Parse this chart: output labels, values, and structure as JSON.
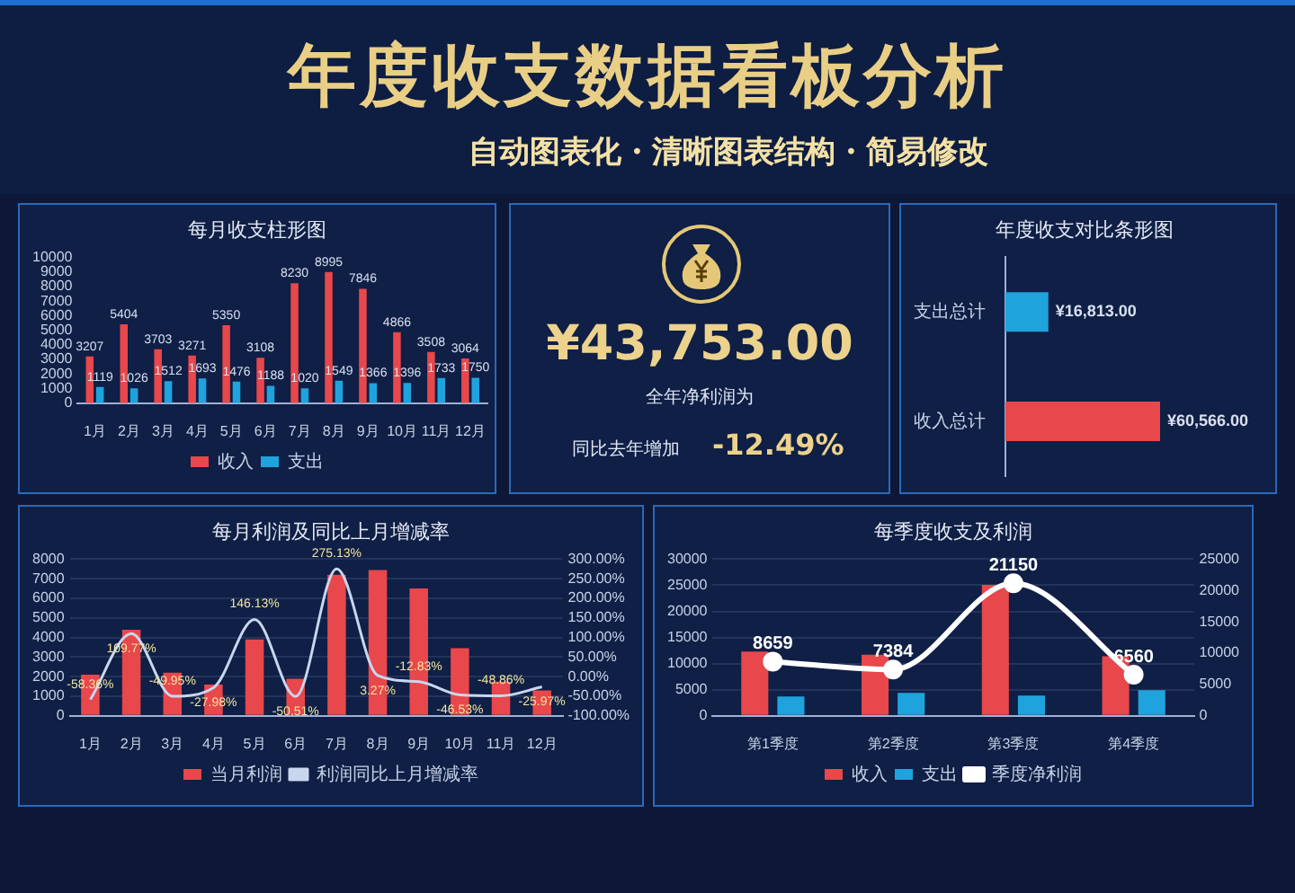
{
  "chart_data": [
    {
      "type": "other",
      "title": "年度收支数据看板分析",
      "subtitle": "自动图表化・清晰图表结构・简易修改"
    },
    {
      "type": "bar",
      "title": "每月收支柱形图",
      "categories": [
        "1月",
        "2月",
        "3月",
        "4月",
        "5月",
        "6月",
        "7月",
        "8月",
        "9月",
        "10月",
        "11月",
        "12月"
      ],
      "series": [
        {
          "name": "收入",
          "color": "#e8474b",
          "values": [
            3207,
            5404,
            3703,
            3271,
            5350,
            3108,
            8230,
            8995,
            7846,
            4866,
            3508,
            3064
          ]
        },
        {
          "name": "支出",
          "color": "#1fa3dd",
          "values": [
            1119,
            1026,
            1512,
            1693,
            1476,
            1188,
            1020,
            1549,
            1366,
            1396,
            1733,
            1750
          ]
        }
      ],
      "ylim": [
        0,
        10000
      ],
      "yticks": [
        0,
        1000,
        2000,
        3000,
        4000,
        5000,
        6000,
        7000,
        8000,
        9000,
        10000
      ],
      "data_labels": true,
      "legend": "bottom"
    },
    {
      "type": "other",
      "annotations": [
        "¥43,753.00",
        "全年净利润为",
        "同比去年增加",
        "-12.49%"
      ]
    },
    {
      "type": "bar",
      "title": "年度收支对比条形图",
      "orientation": "horizontal",
      "categories": [
        "支出总计",
        "收入总计"
      ],
      "values": [
        16813,
        60566
      ],
      "colors": [
        "#1fa3dd",
        "#e8474b"
      ],
      "value_labels": [
        "¥16,813.00",
        "¥60,566.00"
      ],
      "tick_labels": "y"
    },
    {
      "type": "bar",
      "title": "每月利润及同比上月增减率",
      "categories": [
        "1月",
        "2月",
        "3月",
        "4月",
        "5月",
        "6月",
        "7月",
        "8月",
        "9月",
        "10月",
        "11月",
        "12月"
      ],
      "series": [
        {
          "name": "当月利润",
          "color": "#e8474b",
          "values": [
            2100,
            4400,
            2200,
            1600,
            3900,
            1900,
            7200,
            7450,
            6500,
            3450,
            1750,
            1300
          ]
        },
        {
          "name": "利润同比上月增减率",
          "type": "line",
          "axis": "y2",
          "color": "#c9d6ee",
          "values": [
            -58.36,
            109.77,
            -49.95,
            -27.98,
            146.13,
            -50.51,
            275.13,
            3.27,
            -12.83,
            -46.53,
            -48.86,
            -25.97
          ],
          "value_labels": [
            "-58.36%",
            "109.77%",
            "-49.95%",
            "-27.98%",
            "146.13%",
            "-50.51%",
            "275.13%",
            "3.27%",
            "-12.83%",
            "-46.53%",
            "-48.86%",
            "-25.97%"
          ]
        }
      ],
      "ylim": [
        0,
        8000
      ],
      "yticks": [
        0,
        1000,
        2000,
        3000,
        4000,
        5000,
        6000,
        7000,
        8000
      ],
      "y2lim": [
        -100,
        300
      ],
      "y2ticks": [
        {
          "value": -100,
          "label": "-100.00%"
        },
        {
          "value": -50,
          "label": "-50.00%"
        },
        {
          "value": 0,
          "label": "0.00%"
        },
        {
          "value": 50,
          "label": "50.00%"
        },
        {
          "value": 100,
          "label": "100.00%"
        },
        {
          "value": 150,
          "label": "150.00%"
        },
        {
          "value": 200,
          "label": "200.00%"
        },
        {
          "value": 250,
          "label": "250.00%"
        },
        {
          "value": 300,
          "label": "300.00%"
        }
      ],
      "grid": "y",
      "legend": "bottom",
      "marker": "none"
    },
    {
      "type": "bar",
      "title": "每季度收支及利润",
      "categories": [
        "第1季度",
        "第2季度",
        "第3季度",
        "第4季度"
      ],
      "series": [
        {
          "name": "收入",
          "color": "#e8474b",
          "values": [
            12300,
            11700,
            25100,
            11400
          ]
        },
        {
          "name": "支出",
          "color": "#1fa3dd",
          "values": [
            3700,
            4400,
            3900,
            4900
          ]
        },
        {
          "name": "季度净利润",
          "type": "line",
          "axis": "y2",
          "color": "#ffffff",
          "values": [
            8659,
            7384,
            21150,
            6560
          ],
          "value_labels": [
            "8659",
            "7384",
            "21150",
            "6560"
          ]
        }
      ],
      "ylim": [
        0,
        30000
      ],
      "yticks": [
        0,
        5000,
        10000,
        15000,
        20000,
        25000,
        30000
      ],
      "y2lim": [
        0,
        25000
      ],
      "y2ticks": [
        0,
        5000,
        10000,
        15000,
        20000,
        25000
      ],
      "grid": "y",
      "legend": "bottom",
      "marker": "circle"
    }
  ]
}
